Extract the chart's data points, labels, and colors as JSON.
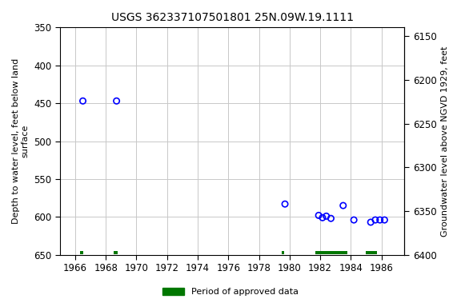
{
  "title": "USGS 362337107501801 25N.09W.19.1111",
  "ylabel_left": "Depth to water level, feet below land\nsurface",
  "ylabel_right": "Groundwater level above NGVD 1929, feet",
  "xlim": [
    1965.0,
    1987.5
  ],
  "ylim_left": [
    350,
    650
  ],
  "ylim_right_top": 6400,
  "ylim_right_bottom": 6140,
  "xticks": [
    1966,
    1968,
    1970,
    1972,
    1974,
    1976,
    1978,
    1980,
    1982,
    1984,
    1986
  ],
  "yticks_left": [
    350,
    400,
    450,
    500,
    550,
    600,
    650
  ],
  "yticks_right": [
    6150,
    6200,
    6250,
    6300,
    6350,
    6400
  ],
  "scatter_x": [
    1966.5,
    1968.7,
    1979.7,
    1981.9,
    1982.15,
    1982.4,
    1982.7,
    1983.5,
    1984.2,
    1985.3,
    1985.6,
    1985.9,
    1986.2
  ],
  "scatter_y": [
    447,
    447,
    583,
    598,
    601,
    599,
    602,
    585,
    604,
    607,
    604,
    604,
    604
  ],
  "scatter_color": "#0000ff",
  "approved_bars": [
    {
      "x_start": 1966.3,
      "x_end": 1966.55
    },
    {
      "x_start": 1968.5,
      "x_end": 1968.75
    },
    {
      "x_start": 1979.5,
      "x_end": 1979.65
    },
    {
      "x_start": 1981.7,
      "x_end": 1983.8
    },
    {
      "x_start": 1985.0,
      "x_end": 1985.7
    }
  ],
  "approved_color": "#007700",
  "background_color": "#ffffff",
  "grid_color": "#c8c8c8",
  "title_fontsize": 10,
  "label_fontsize": 8,
  "tick_fontsize": 8.5
}
